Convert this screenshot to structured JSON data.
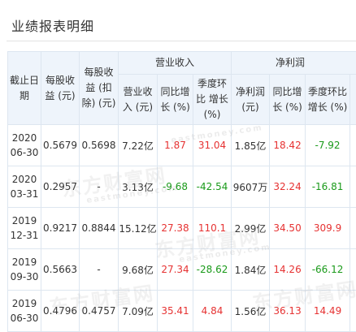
{
  "title": "业绩报表明细",
  "header": {
    "date_col": "截止日期",
    "eps": "每股收益 (元)",
    "eps_deducted": "每股收益 (扣除) (元)",
    "revenue_group": "营业收入",
    "profit_group": "净利润",
    "revenue": "营业收入 (元)",
    "revenue_yoy": "同比增长 (%)",
    "revenue_qoq": "季度环比 增长 (%)",
    "profit": "净利润 (元)",
    "profit_yoy": "同比增长 (%)",
    "profit_qoq": "季度环比 增长 (%)"
  },
  "rows": [
    {
      "year": "2020",
      "md": "06-30",
      "eps": "0.5679",
      "eps_deducted": "0.5698",
      "revenue": "7.22亿",
      "revenue_yoy": "1.87",
      "revenue_qoq": "31.04",
      "profit": "1.85亿",
      "profit_yoy": "18.42",
      "profit_qoq": "-7.92"
    },
    {
      "year": "2020",
      "md": "03-31",
      "eps": "0.2957",
      "eps_deducted": "-",
      "revenue": "3.13亿",
      "revenue_yoy": "-9.68",
      "revenue_qoq": "-42.54",
      "profit": "9607万",
      "profit_yoy": "32.24",
      "profit_qoq": "-16.81"
    },
    {
      "year": "2019",
      "md": "12-31",
      "eps": "0.9217",
      "eps_deducted": "0.8844",
      "revenue": "15.12亿",
      "revenue_yoy": "27.38",
      "revenue_qoq": "110.1",
      "profit": "2.99亿",
      "profit_yoy": "34.50",
      "profit_qoq": "309.9"
    },
    {
      "year": "2019",
      "md": "09-30",
      "eps": "0.5663",
      "eps_deducted": "-",
      "revenue": "9.68亿",
      "revenue_yoy": "27.34",
      "revenue_qoq": "-28.62",
      "profit": "1.84亿",
      "profit_yoy": "14.26",
      "profit_qoq": "-66.12"
    },
    {
      "year": "2019",
      "md": "06-30",
      "eps": "0.4796",
      "eps_deducted": "0.4757",
      "revenue": "7.09亿",
      "revenue_yoy": "35.41",
      "revenue_qoq": "4.84",
      "profit": "1.56亿",
      "profit_yoy": "36.13",
      "profit_qoq": "14.49"
    }
  ],
  "watermark": {
    "main": "东方财富网",
    "sub": "eastmoney.com"
  },
  "colors": {
    "positive": "#e63232",
    "negative": "#1a9a1a",
    "header_bg": "#eef4fb",
    "border": "#dde6f0"
  }
}
